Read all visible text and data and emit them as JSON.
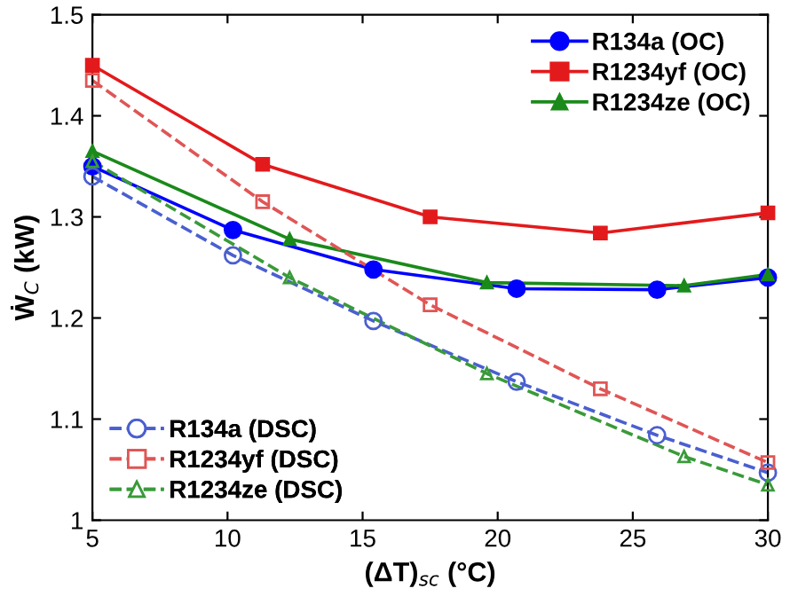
{
  "chart_data": {
    "type": "line",
    "xlabel": "(ΔT)$_{sc}$ (°C)",
    "ylabel": "Ẇ$_{C}$ (kW)",
    "xlim": [
      5,
      30
    ],
    "ylim": [
      1,
      1.5
    ],
    "xticks": [
      5,
      10,
      15,
      20,
      25,
      30
    ],
    "yticks": [
      1,
      1.1,
      1.2,
      1.3,
      1.4,
      1.5
    ],
    "grid": false,
    "legend": "top right",
    "series": [
      {
        "name": "R134a (OC)",
        "color": "#0000ff",
        "marker": "circle",
        "line_style": "solid",
        "x": [
          5,
          10.2,
          15.4,
          20.7,
          25.9,
          30
        ],
        "values": [
          1.35,
          1.287,
          1.248,
          1.229,
          1.228,
          1.24
        ]
      },
      {
        "name": "R1234yf (OC)",
        "color": "#e31a1c",
        "marker": "square",
        "line_style": "solid",
        "x": [
          5,
          11.3,
          17.5,
          23.8,
          30
        ],
        "values": [
          1.45,
          1.352,
          1.3,
          1.284,
          1.304
        ]
      },
      {
        "name": "R1234ze (OC)",
        "color": "#1a8a1a",
        "marker": "triangle",
        "line_style": "solid",
        "x": [
          5,
          12.3,
          19.6,
          26.9,
          30
        ],
        "values": [
          1.365,
          1.278,
          1.235,
          1.232,
          1.243
        ]
      },
      {
        "name": "R134a (DSC)",
        "color": "#4a5fd0",
        "marker": "circle",
        "line_style": "dashed",
        "x": [
          5,
          10.2,
          15.4,
          20.7,
          25.9,
          30
        ],
        "values": [
          1.34,
          1.262,
          1.197,
          1.137,
          1.084,
          1.047
        ]
      },
      {
        "name": "R1234yf (DSC)",
        "color": "#e05555",
        "marker": "square",
        "line_style": "dashed",
        "x": [
          5,
          11.3,
          17.5,
          23.8,
          30
        ],
        "values": [
          1.435,
          1.315,
          1.213,
          1.13,
          1.057
        ]
      },
      {
        "name": "R1234ze (DSC)",
        "color": "#3a9a3a",
        "marker": "triangle",
        "line_style": "dashed",
        "x": [
          5,
          12.3,
          19.6,
          26.9,
          30
        ],
        "values": [
          1.355,
          1.24,
          1.145,
          1.063,
          1.035
        ]
      }
    ]
  }
}
